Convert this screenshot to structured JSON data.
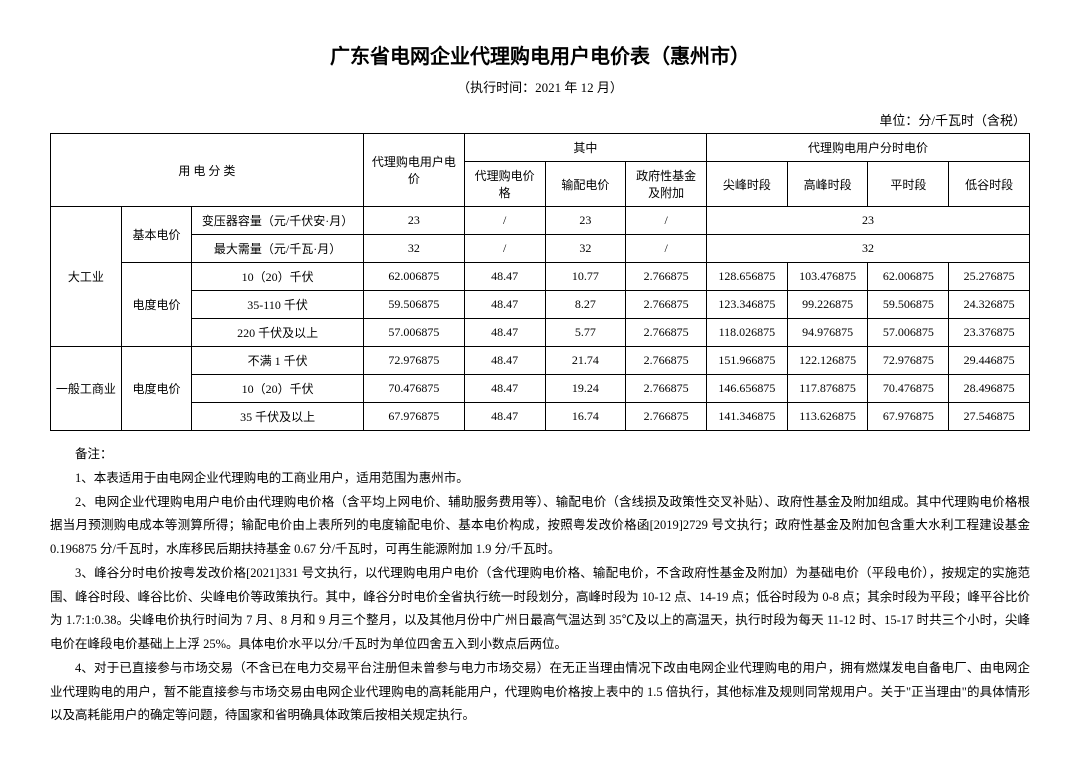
{
  "title": "广东省电网企业代理购电用户电价表（惠州市）",
  "subtitle": "（执行时间：2021 年 12 月）",
  "unit": "单位：分/千瓦时（含税）",
  "headers": {
    "category": "用 电 分 类",
    "agent_price": "代理购电用户电价",
    "among": "其中",
    "tod_price": "代理购电用户分时电价",
    "sub1": "代理购电价格",
    "sub2": "输配电价",
    "sub3": "政府性基金及附加",
    "peak": "尖峰时段",
    "high": "高峰时段",
    "flat": "平时段",
    "valley": "低谷时段"
  },
  "groups": {
    "large_industry": "大工业",
    "commercial": "一般工商业",
    "basic": "基本电价",
    "energy": "电度电价"
  },
  "rows": {
    "r1": {
      "name": "变压器容量（元/千伏安·月）",
      "agent": "23",
      "a": "/",
      "b": "23",
      "c": "/",
      "tod": "23"
    },
    "r2": {
      "name": "最大需量（元/千瓦·月）",
      "agent": "32",
      "a": "/",
      "b": "32",
      "c": "/",
      "tod": "32"
    },
    "r3": {
      "name": "10（20）千伏",
      "agent": "62.006875",
      "a": "48.47",
      "b": "10.77",
      "c": "2.766875",
      "p": "128.656875",
      "h": "103.476875",
      "f": "62.006875",
      "v": "25.276875"
    },
    "r4": {
      "name": "35-110 千伏",
      "agent": "59.506875",
      "a": "48.47",
      "b": "8.27",
      "c": "2.766875",
      "p": "123.346875",
      "h": "99.226875",
      "f": "59.506875",
      "v": "24.326875"
    },
    "r5": {
      "name": "220 千伏及以上",
      "agent": "57.006875",
      "a": "48.47",
      "b": "5.77",
      "c": "2.766875",
      "p": "118.026875",
      "h": "94.976875",
      "f": "57.006875",
      "v": "23.376875"
    },
    "r6": {
      "name": "不满 1 千伏",
      "agent": "72.976875",
      "a": "48.47",
      "b": "21.74",
      "c": "2.766875",
      "p": "151.966875",
      "h": "122.126875",
      "f": "72.976875",
      "v": "29.446875"
    },
    "r7": {
      "name": "10（20）千伏",
      "agent": "70.476875",
      "a": "48.47",
      "b": "19.24",
      "c": "2.766875",
      "p": "146.656875",
      "h": "117.876875",
      "f": "70.476875",
      "v": "28.496875"
    },
    "r8": {
      "name": "35 千伏及以上",
      "agent": "67.976875",
      "a": "48.47",
      "b": "16.74",
      "c": "2.766875",
      "p": "141.346875",
      "h": "113.626875",
      "f": "67.976875",
      "v": "27.546875"
    }
  },
  "notes": {
    "head": "备注：",
    "n1": "1、本表适用于由电网企业代理购电的工商业用户，适用范围为惠州市。",
    "n2": "2、电网企业代理购电用户电价由代理购电价格（含平均上网电价、辅助服务费用等）、输配电价（含线损及政策性交叉补贴）、政府性基金及附加组成。其中代理购电价格根据当月预测购电成本等测算所得；输配电价由上表所列的电度输配电价、基本电价构成，按照粤发改价格函[2019]2729 号文执行；政府性基金及附加包含重大水利工程建设基金 0.196875 分/千瓦时，水库移民后期扶持基金 0.67 分/千瓦时，可再生能源附加 1.9 分/千瓦时。",
    "n3": "3、峰谷分时电价按粤发改价格[2021]331 号文执行，以代理购电用户电价（含代理购电价格、输配电价，不含政府性基金及附加）为基础电价（平段电价），按规定的实施范围、峰谷时段、峰谷比价、尖峰电价等政策执行。其中，峰谷分时电价全省执行统一时段划分，高峰时段为 10-12 点、14-19 点；低谷时段为 0-8 点；其余时段为平段；峰平谷比价为 1.7:1:0.38。尖峰电价执行时间为 7 月、8 月和 9 月三个整月，以及其他月份中广州日最高气温达到 35℃及以上的高温天，执行时段为每天 11-12 时、15-17 时共三个小时，尖峰电价在峰段电价基础上上浮 25%。具体电价水平以分/千瓦时为单位四舍五入到小数点后两位。",
    "n4": "4、对于已直接参与市场交易（不含已在电力交易平台注册但未曾参与电力市场交易）在无正当理由情况下改由电网企业代理购电的用户，拥有燃煤发电自备电厂、由电网企业代理购电的用户，暂不能直接参与市场交易由电网企业代理购电的高耗能用户，代理购电价格按上表中的 1.5 倍执行，其他标准及规则同常规用户。关于\"正当理由\"的具体情形以及高耗能用户的确定等问题，待国家和省明确具体政策后按相关规定执行。"
  }
}
